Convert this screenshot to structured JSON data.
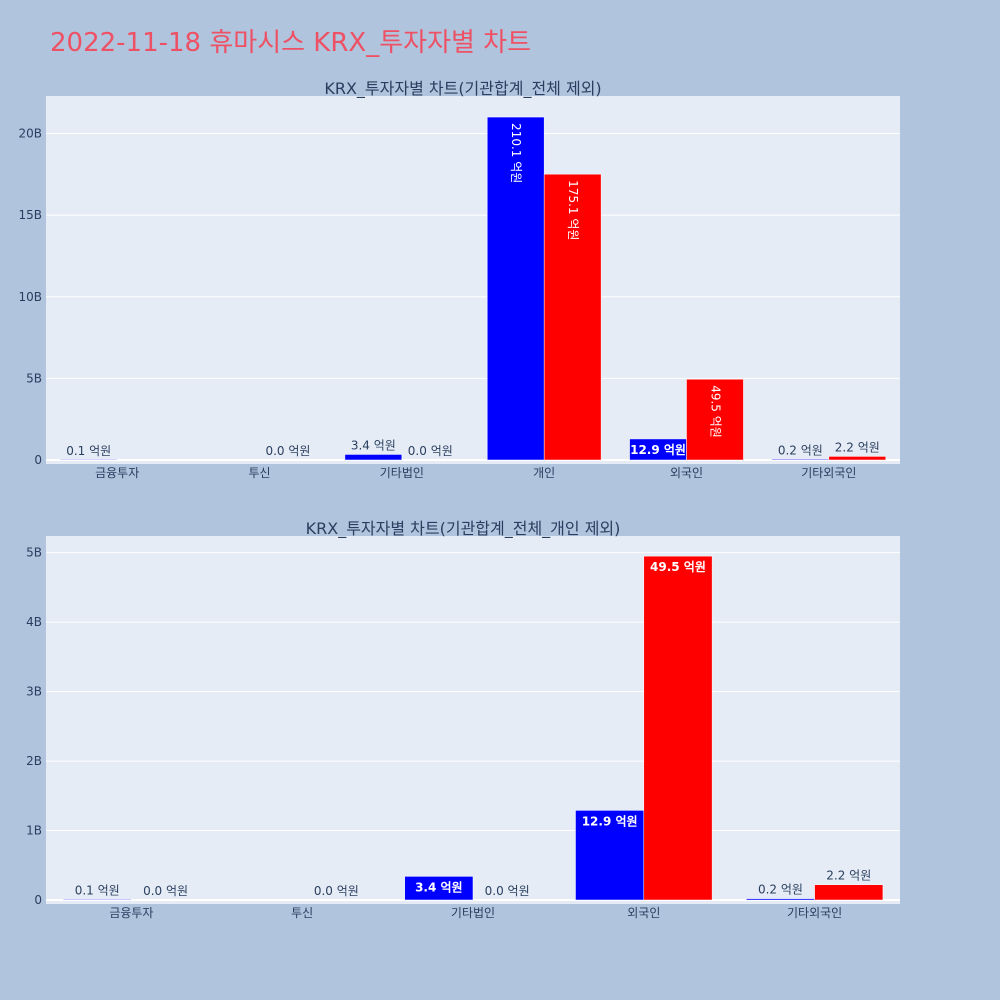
{
  "title": "2022-11-18 휴마시스 KRX_투자자별 차트",
  "colors": {
    "buy": "#0000ff",
    "sell": "#ff0000",
    "title": "#ef5164",
    "plot_bg": "#e5ecf6",
    "page_bg": "#b0c4de"
  },
  "chart_data": [
    {
      "type": "bar",
      "title": "KRX_투자자별 차트(기관합계_전체 제외)",
      "categories": [
        "금융투자",
        "투신",
        "기타법인",
        "개인",
        "외국인",
        "기타외국인"
      ],
      "series": [
        {
          "values": [
            10000000,
            0,
            340000000,
            21010000000,
            1290000000,
            20000000
          ],
          "labels": [
            "0.1 억원",
            "",
            "3.4 억원",
            "210.1 억원",
            "12.9 억원",
            "0.2 억원"
          ]
        },
        {
          "values": [
            0,
            0,
            0,
            17510000000,
            4950000000,
            220000000
          ],
          "labels": [
            "",
            "0.0 억원",
            "0.0 억원",
            "175.1 억원",
            "49.5 억원",
            "2.2 억원"
          ]
        }
      ],
      "ylim": [
        0,
        22300000000
      ],
      "yticks": [
        0,
        5000000000,
        10000000000,
        15000000000,
        20000000000
      ],
      "ytick_labels": [
        "0",
        "5B",
        "10B",
        "15B",
        "20B"
      ],
      "grid": true
    },
    {
      "type": "bar",
      "title": "KRX_투자자별 차트(기관합계_전체_개인 제외)",
      "categories": [
        "금융투자",
        "투신",
        "기타법인",
        "외국인",
        "기타외국인"
      ],
      "series": [
        {
          "values": [
            10000000,
            0,
            340000000,
            1290000000,
            20000000
          ],
          "labels": [
            "0.1 억원",
            "",
            "3.4 억원",
            "12.9 억원",
            "0.2 억원"
          ]
        },
        {
          "values": [
            0,
            0,
            0,
            4950000000,
            220000000
          ],
          "labels": [
            "0.0 억원",
            "0.0 억원",
            "0.0 억원",
            "49.5 억원",
            "2.2 억원"
          ]
        }
      ],
      "ylim": [
        0,
        5240000000
      ],
      "yticks": [
        0,
        1000000000,
        2000000000,
        3000000000,
        4000000000,
        5000000000
      ],
      "ytick_labels": [
        "0",
        "1B",
        "2B",
        "3B",
        "4B",
        "5B"
      ],
      "grid": true
    }
  ]
}
